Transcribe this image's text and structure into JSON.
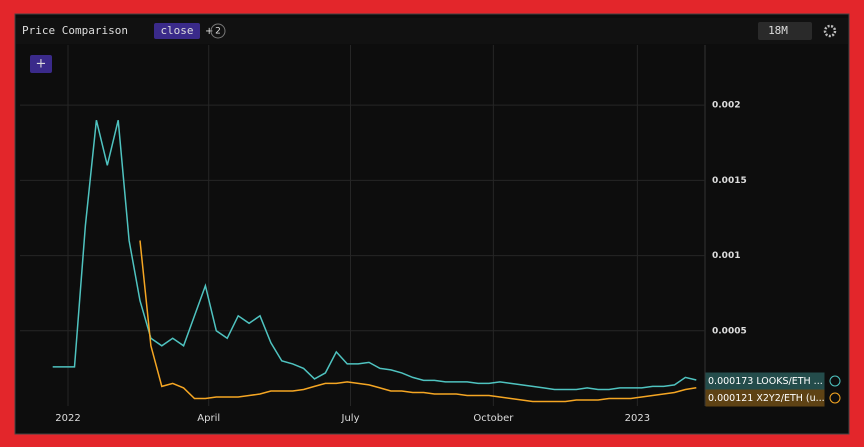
{
  "ui": {
    "title": "Price Comparison",
    "field": "close",
    "add": "+",
    "count": "2",
    "range": "18M",
    "add_button": "+"
  },
  "chart_data": {
    "type": "line",
    "x": [
      3,
      4,
      5,
      6,
      7,
      8,
      9,
      10,
      11,
      12,
      13,
      14,
      15,
      16,
      17,
      18,
      19,
      20,
      21,
      22,
      23,
      24,
      25,
      26,
      27,
      28,
      29,
      30,
      31,
      32,
      33,
      34,
      35,
      36,
      37,
      38,
      39,
      40,
      41,
      42,
      43,
      44,
      45,
      46,
      47,
      48,
      49,
      50,
      51,
      52,
      53,
      54,
      55,
      56,
      57,
      58,
      59,
      60,
      61,
      62
    ],
    "series": [
      {
        "name": "LOOKS/ETH ...",
        "color": "#4fc3c0",
        "values": [
          0.00026,
          0.00026,
          0.00026,
          0.0012,
          0.0019,
          0.0016,
          0.0019,
          0.0011,
          0.0007,
          0.00045,
          0.0004,
          0.00045,
          0.0004,
          0.0006,
          0.0008,
          0.0005,
          0.00045,
          0.0006,
          0.00055,
          0.0006,
          0.00042,
          0.0003,
          0.00028,
          0.00025,
          0.00018,
          0.00022,
          0.00036,
          0.00028,
          0.00028,
          0.00029,
          0.00025,
          0.00024,
          0.00022,
          0.00019,
          0.00017,
          0.00017,
          0.00016,
          0.00016,
          0.00016,
          0.00015,
          0.00015,
          0.00016,
          0.00015,
          0.00014,
          0.00013,
          0.00012,
          0.00011,
          0.00011,
          0.00011,
          0.00012,
          0.00011,
          0.00011,
          0.00012,
          0.00012,
          0.00012,
          0.00013,
          0.00013,
          0.00014,
          0.00019,
          0.000173
        ]
      },
      {
        "name": "X2Y2/ETH (u...",
        "color": "#f5a623",
        "values": [
          null,
          null,
          null,
          null,
          null,
          null,
          null,
          null,
          0.0011,
          0.0004,
          0.00013,
          0.00015,
          0.00012,
          5e-05,
          5e-05,
          6e-05,
          6e-05,
          6e-05,
          7e-05,
          8e-05,
          0.0001,
          0.0001,
          0.0001,
          0.00011,
          0.00013,
          0.00015,
          0.00015,
          0.00016,
          0.00015,
          0.00014,
          0.00012,
          0.0001,
          0.0001,
          9e-05,
          9e-05,
          8e-05,
          8e-05,
          8e-05,
          7e-05,
          7e-05,
          7e-05,
          6e-05,
          5e-05,
          4e-05,
          3e-05,
          3e-05,
          3e-05,
          3e-05,
          4e-05,
          4e-05,
          4e-05,
          5e-05,
          5e-05,
          5e-05,
          6e-05,
          7e-05,
          8e-05,
          9e-05,
          0.00011,
          0.000121
        ]
      }
    ],
    "xlim": [
      0,
      62.8
    ],
    "xticks": [
      {
        "value": 4.4,
        "label": "2022"
      },
      {
        "value": 17.3,
        "label": "April"
      },
      {
        "value": 30.3,
        "label": "July"
      },
      {
        "value": 43.4,
        "label": "October"
      },
      {
        "value": 56.6,
        "label": "2023"
      }
    ],
    "ylim": [
      0,
      0.0024
    ],
    "yticks": [
      0.0005,
      0.001,
      0.0015,
      0.002
    ],
    "grid": true
  }
}
